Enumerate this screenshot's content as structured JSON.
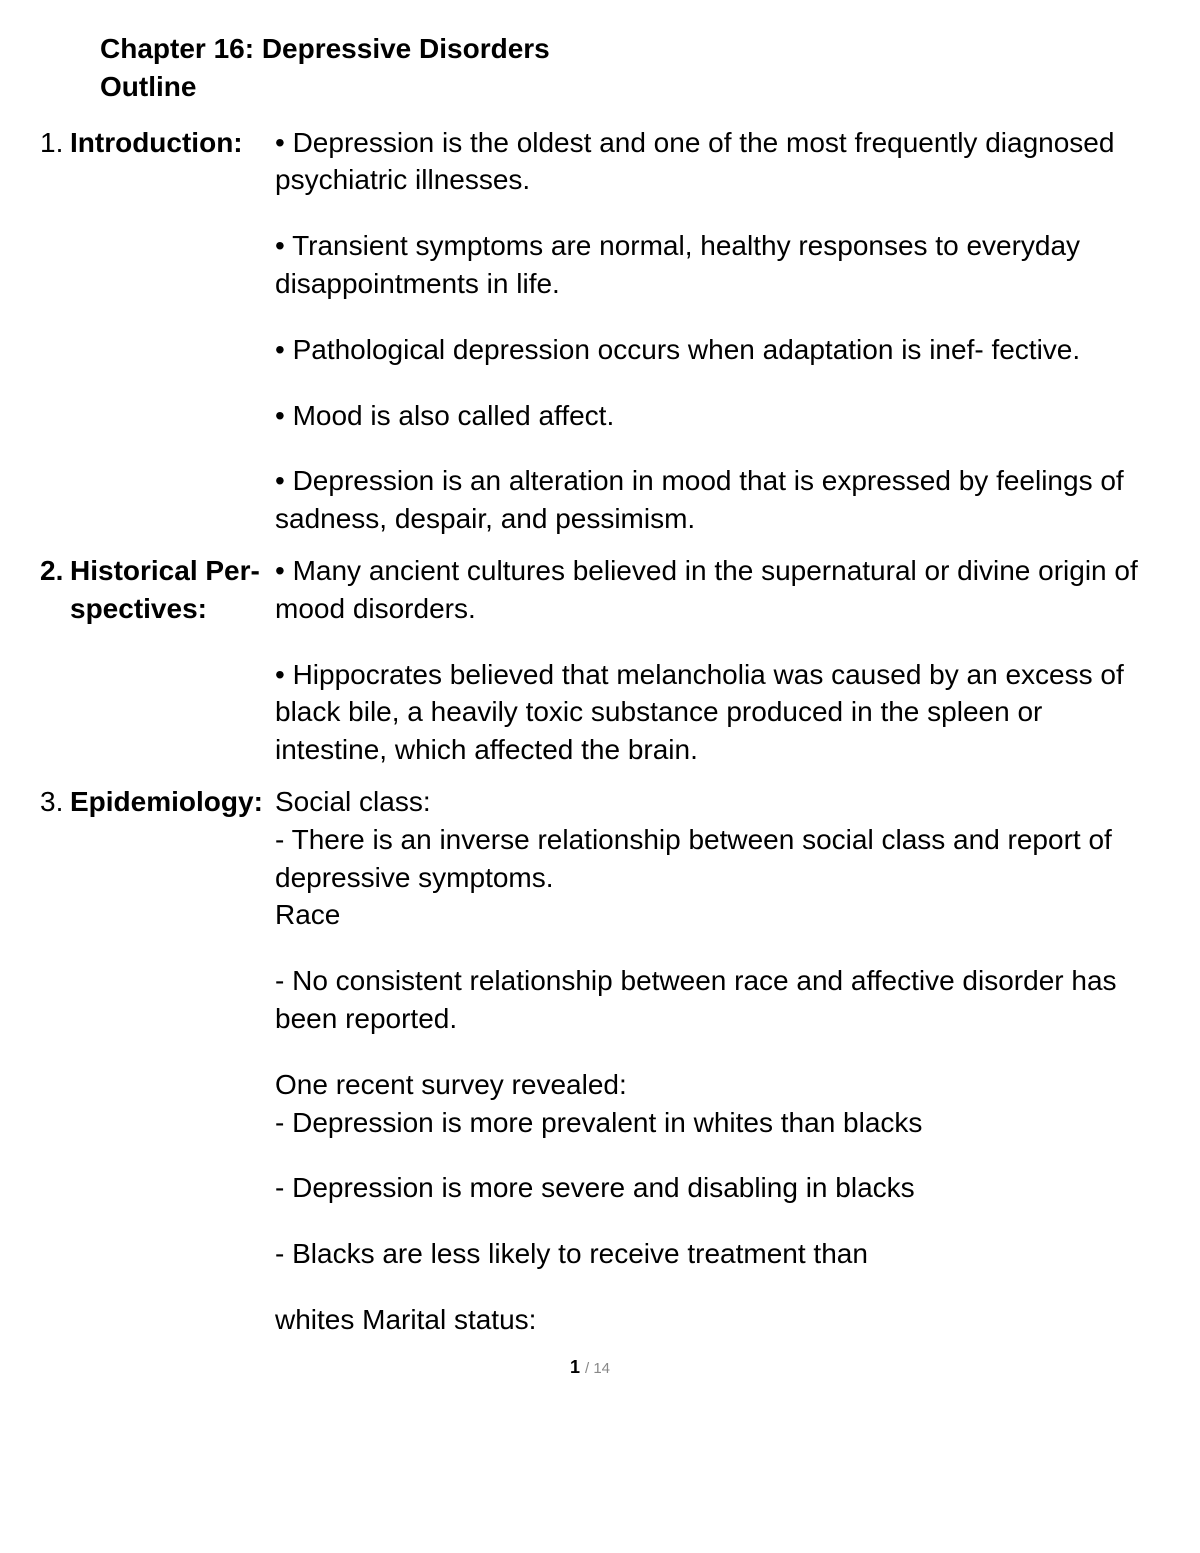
{
  "header": {
    "title": "Chapter 16: Depressive Disorders",
    "subtitle": "Outline"
  },
  "sections": [
    {
      "num": "1.",
      "num_bold": false,
      "label": "Introduction:",
      "paras": [
        "• Depression is the oldest and one of the most frequently diagnosed psychiatric illnesses.",
        "• Transient symptoms are normal, healthy responses to everyday disappointments in life.",
        "• Pathological depression occurs when adaptation is inef- fective.",
        "• Mood is also called affect.",
        "• Depression is an alteration in mood that is expressed by feelings of sadness, despair, and pessimism."
      ]
    },
    {
      "num": "2.",
      "num_bold": true,
      "label": "Historical Per- spectives:",
      "paras": [
        "• Many ancient cultures believed in the supernatural or divine origin of mood disorders.",
        "• Hippocrates believed that melancholia was caused by an excess of black bile, a heavily toxic substance produced in the spleen or intestine, which affected the brain."
      ]
    },
    {
      "num": "3.",
      "num_bold": false,
      "label": "Epidemiology:",
      "paras": [
        "Social class:\n- There is an inverse relationship between social class and report of depressive symptoms.\nRace",
        "- No consistent relationship between race and affective disorder has been reported.",
        "One recent survey revealed:\n- Depression is more prevalent in whites than blacks",
        "- Depression is more severe and disabling in blacks",
        "- Blacks are less likely to receive treatment than",
        "whites Marital status:"
      ]
    }
  ],
  "footer": {
    "current": "1",
    "total": "/ 14"
  },
  "style": {
    "background": "#ffffff",
    "text_color": "#000000",
    "font_family": "Arial, Helvetica, sans-serif",
    "title_fontsize": 28,
    "body_fontsize": 28,
    "footer_cur_color": "#000000",
    "footer_total_color": "#888888"
  }
}
